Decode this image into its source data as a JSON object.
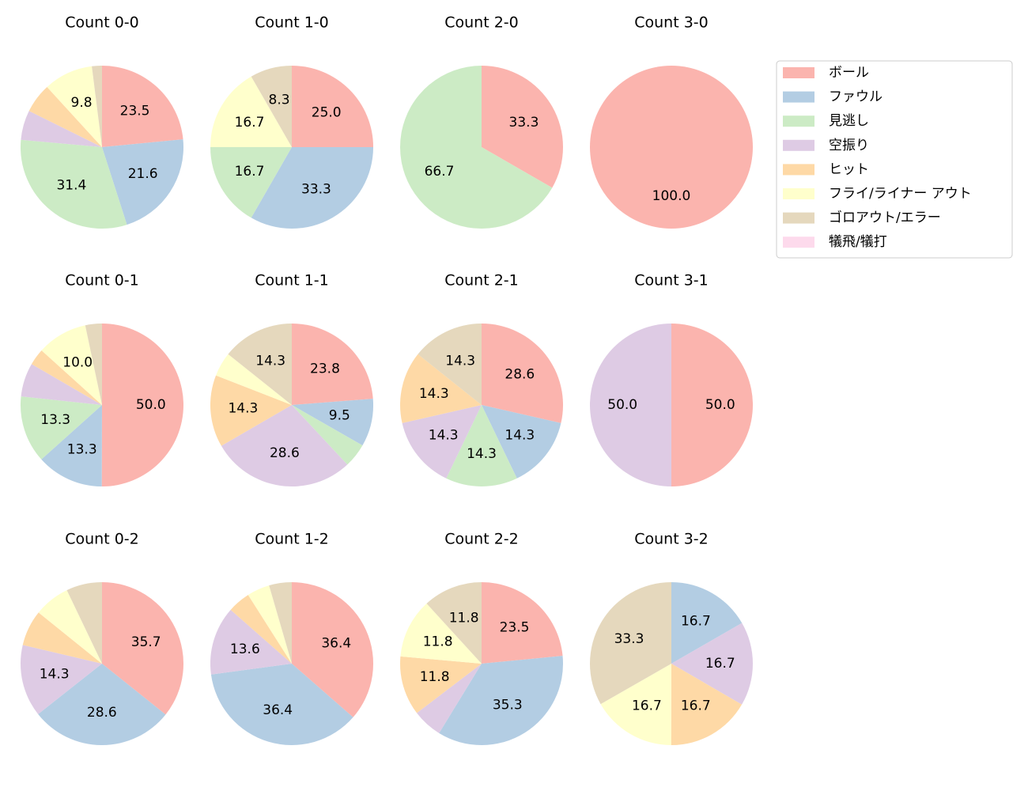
{
  "legend": {
    "labels": [
      "ボール",
      "ファウル",
      "見逃し",
      "空振り",
      "ヒット",
      "フライ/ライナー アウト",
      "ゴロアウト/エラー",
      "犠飛/犠打"
    ],
    "colors": [
      "#fbb4ae",
      "#b3cde3",
      "#ccebc5",
      "#decbe4",
      "#fed9a6",
      "#ffffcc",
      "#e5d8bd",
      "#fddaec"
    ]
  },
  "chart_data": [
    {
      "type": "pie",
      "title": "Count 0-0",
      "values": [
        23.5,
        21.6,
        31.4,
        5.9,
        5.9,
        9.8,
        2.0,
        0
      ],
      "value_labels": [
        "23.5",
        "21.6",
        "31.4",
        null,
        null,
        "9.8",
        null,
        null
      ]
    },
    {
      "type": "pie",
      "title": "Count 1-0",
      "values": [
        25.0,
        33.3,
        16.7,
        0,
        0,
        16.7,
        8.3,
        0
      ],
      "value_labels": [
        "25.0",
        "33.3",
        "16.7",
        null,
        null,
        "16.7",
        "8.3",
        null
      ]
    },
    {
      "type": "pie",
      "title": "Count 2-0",
      "values": [
        33.3,
        0,
        66.7,
        0,
        0,
        0,
        0,
        0
      ],
      "value_labels": [
        "33.3",
        null,
        "66.7",
        null,
        null,
        null,
        null,
        null
      ]
    },
    {
      "type": "pie",
      "title": "Count 3-0",
      "values": [
        100.0,
        0,
        0,
        0,
        0,
        0,
        0,
        0
      ],
      "value_labels": [
        "100.0",
        null,
        null,
        null,
        null,
        null,
        null,
        null
      ]
    },
    {
      "type": "pie",
      "title": "Count 0-1",
      "values": [
        50.0,
        13.3,
        13.3,
        6.7,
        3.3,
        10.0,
        3.3,
        0
      ],
      "value_labels": [
        "50.0",
        "13.3",
        "13.3",
        null,
        null,
        "10.0",
        null,
        null
      ]
    },
    {
      "type": "pie",
      "title": "Count 1-1",
      "values": [
        23.8,
        9.5,
        4.8,
        28.6,
        14.3,
        4.8,
        14.3,
        0
      ],
      "value_labels": [
        "23.8",
        "9.5",
        null,
        "28.6",
        "14.3",
        null,
        "14.3",
        null
      ]
    },
    {
      "type": "pie",
      "title": "Count 2-1",
      "values": [
        28.6,
        14.3,
        14.3,
        14.3,
        14.3,
        0,
        14.3,
        0
      ],
      "value_labels": [
        "28.6",
        "14.3",
        "14.3",
        "14.3",
        "14.3",
        null,
        "14.3",
        null
      ]
    },
    {
      "type": "pie",
      "title": "Count 3-1",
      "values": [
        50.0,
        0,
        0,
        50.0,
        0,
        0,
        0,
        0
      ],
      "value_labels": [
        "50.0",
        null,
        null,
        "50.0",
        null,
        null,
        null,
        null
      ]
    },
    {
      "type": "pie",
      "title": "Count 0-2",
      "values": [
        35.7,
        28.6,
        0,
        14.3,
        7.1,
        7.1,
        7.1,
        0
      ],
      "value_labels": [
        "35.7",
        "28.6",
        null,
        "14.3",
        null,
        null,
        null,
        null
      ]
    },
    {
      "type": "pie",
      "title": "Count 1-2",
      "values": [
        36.4,
        36.4,
        0,
        13.6,
        4.5,
        4.5,
        4.5,
        0
      ],
      "value_labels": [
        "36.4",
        "36.4",
        null,
        "13.6",
        null,
        null,
        null,
        null
      ]
    },
    {
      "type": "pie",
      "title": "Count 2-2",
      "values": [
        23.5,
        35.3,
        0,
        5.9,
        11.8,
        11.8,
        11.8,
        0
      ],
      "value_labels": [
        "23.5",
        "35.3",
        null,
        null,
        "11.8",
        "11.8",
        "11.8",
        null
      ]
    },
    {
      "type": "pie",
      "title": "Count 3-2",
      "values": [
        0,
        16.7,
        0,
        16.7,
        16.7,
        16.7,
        33.3,
        0
      ],
      "value_labels": [
        null,
        "16.7",
        null,
        "16.7",
        "16.7",
        "16.7",
        "33.3",
        null
      ]
    }
  ]
}
